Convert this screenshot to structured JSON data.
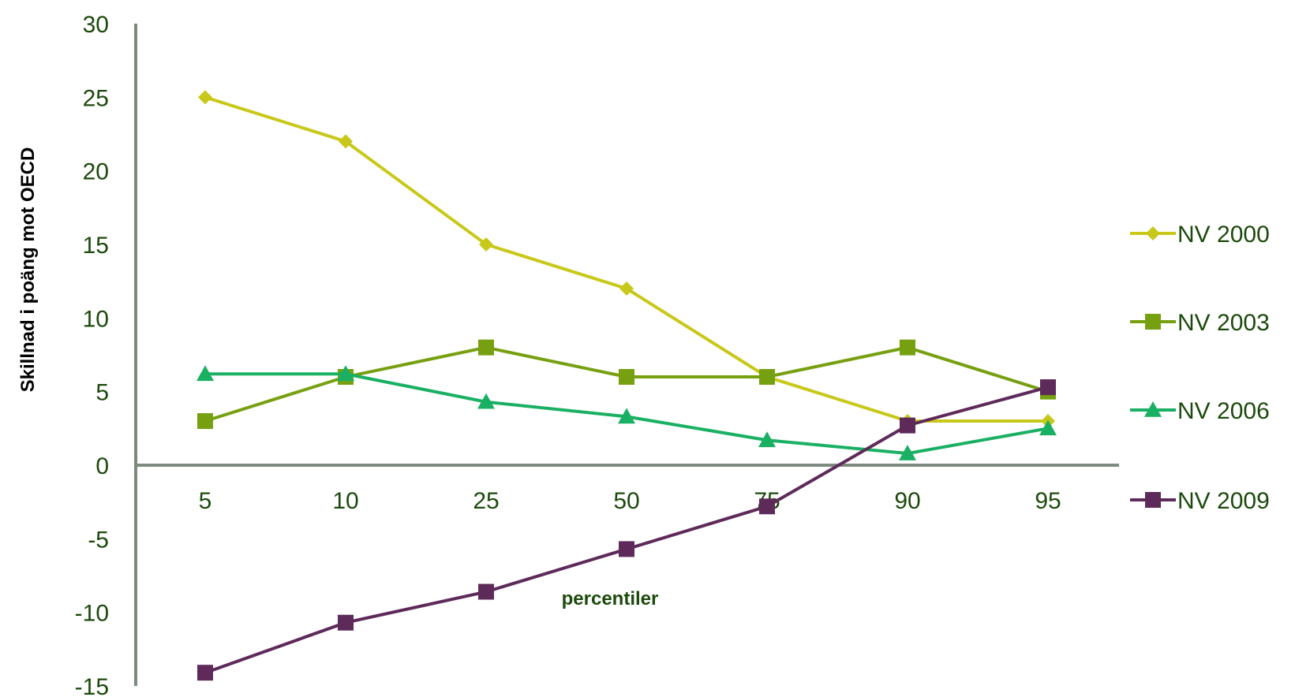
{
  "chart_data": {
    "type": "line",
    "categories": [
      "5",
      "10",
      "25",
      "50",
      "75",
      "90",
      "95"
    ],
    "series": [
      {
        "name": "NV 2000",
        "values": [
          25,
          22,
          15,
          12,
          6,
          3,
          3
        ],
        "color": "#c8c81a",
        "marker": "diamond"
      },
      {
        "name": "NV 2003",
        "values": [
          3,
          6,
          8,
          6,
          6,
          8,
          5
        ],
        "color": "#77a011",
        "marker": "square"
      },
      {
        "name": "NV 2006",
        "values": [
          6.2,
          6.2,
          4.3,
          3.3,
          1.7,
          0.8,
          2.5
        ],
        "color": "#1ab063",
        "marker": "triangle"
      },
      {
        "name": "NV 2009",
        "values": [
          -14.1,
          -10.7,
          -8.6,
          -5.7,
          -2.8,
          2.7,
          5.3
        ],
        "color": "#5e2a5a",
        "marker": "square"
      }
    ],
    "title": "",
    "xlabel": "percentiler",
    "ylabel": "Skillnad i poäng mot OECD",
    "ylim": [
      -15,
      30
    ],
    "yticks": [
      "30",
      "25",
      "20",
      "15",
      "10",
      "5",
      "0",
      "-5",
      "-10",
      "-15"
    ],
    "grid": false,
    "legend_position": "right",
    "axis_color": "#7f8a7f"
  }
}
